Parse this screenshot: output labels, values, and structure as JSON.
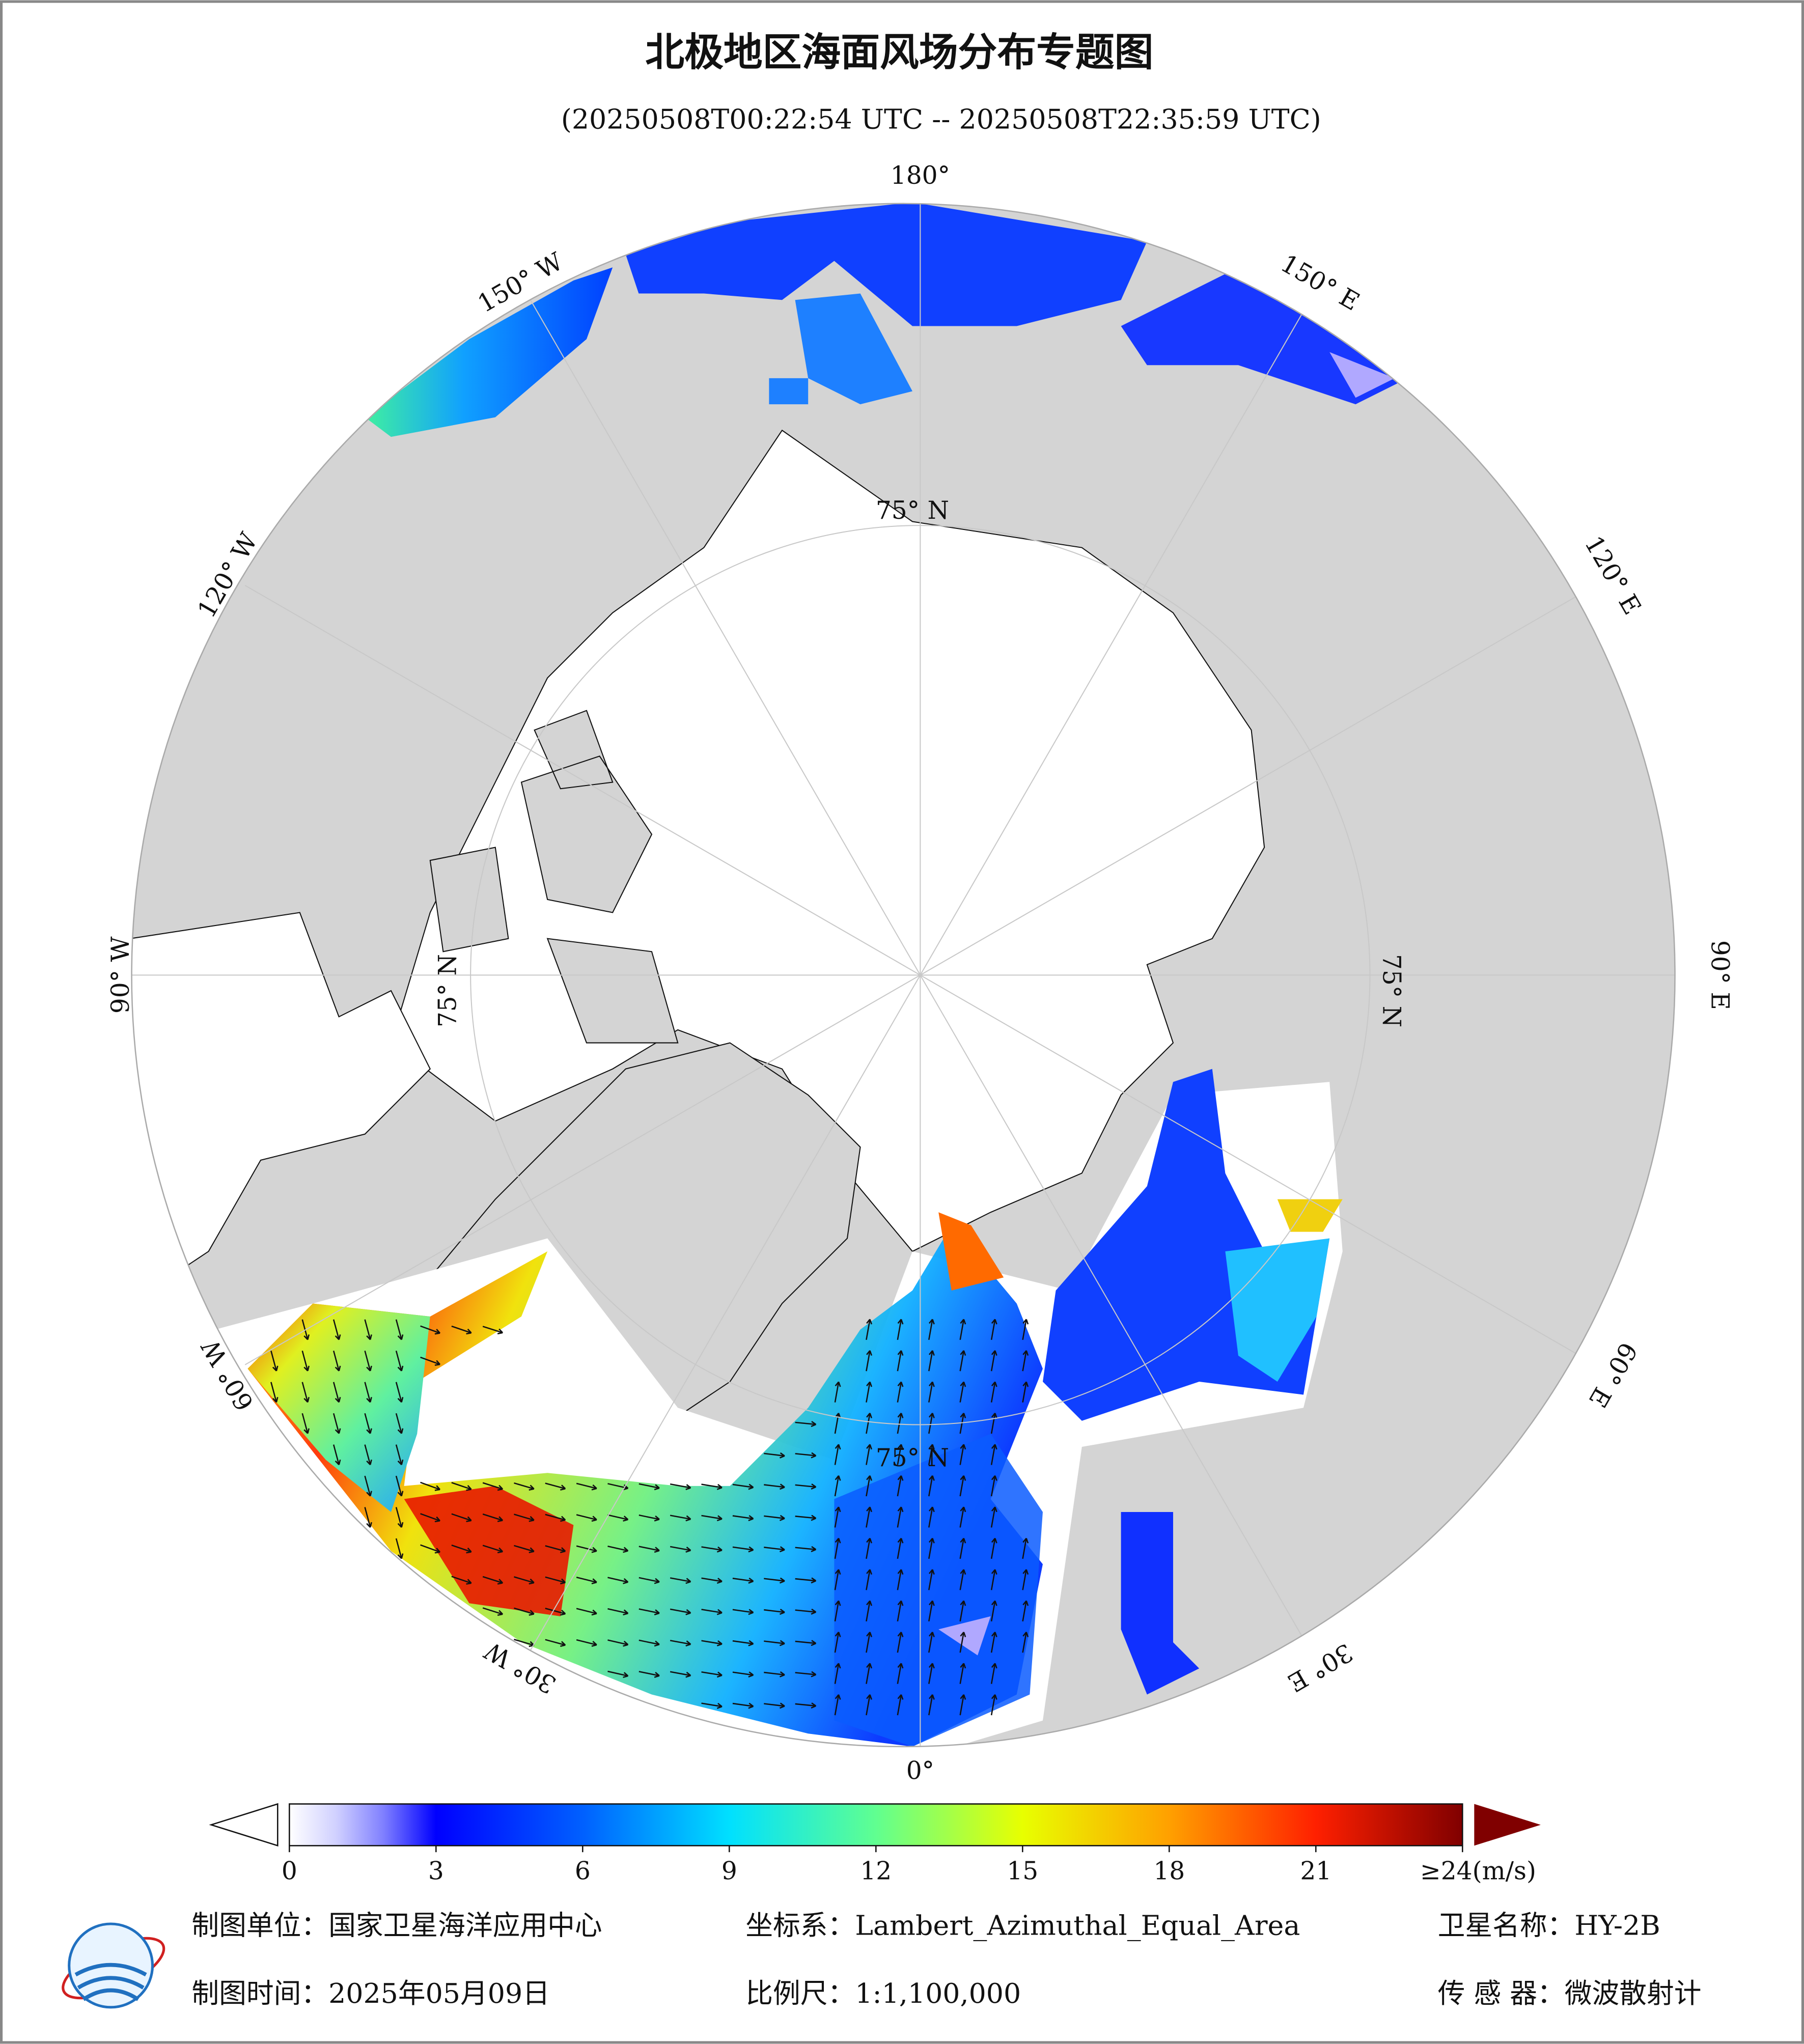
{
  "header": {
    "title": "北极地区海面风场分布专题图",
    "subtitle": "(20250508T00:22:54 UTC -- 20250508T22:35:59 UTC)"
  },
  "map": {
    "lon_labels": [
      "180°",
      "150° E",
      "120° E",
      "90° E",
      "60° E",
      "30° E",
      "0°",
      "30° W",
      "60° W",
      "90° W",
      "120° W",
      "150° W"
    ],
    "lat_labels": [
      "75° N",
      "75° N",
      "75° N",
      "75° N"
    ]
  },
  "colorbar": {
    "lim": [
      0,
      24
    ],
    "ticks": [
      0,
      3,
      6,
      9,
      12,
      15,
      18,
      21,
      {
        "value": 24,
        "label": "≥24(m/s)"
      }
    ]
  },
  "footer": {
    "unit": "制图单位：国家卫星海洋应用中心",
    "projection": "坐标系：Lambert_Azimuthal_Equal_Area",
    "satellite": "卫星名称：HY-2B",
    "date": "制图时间：2025年05月09日",
    "scale": "比例尺：1:1,100,000",
    "sensor": "传 感 器：微波散射计"
  }
}
